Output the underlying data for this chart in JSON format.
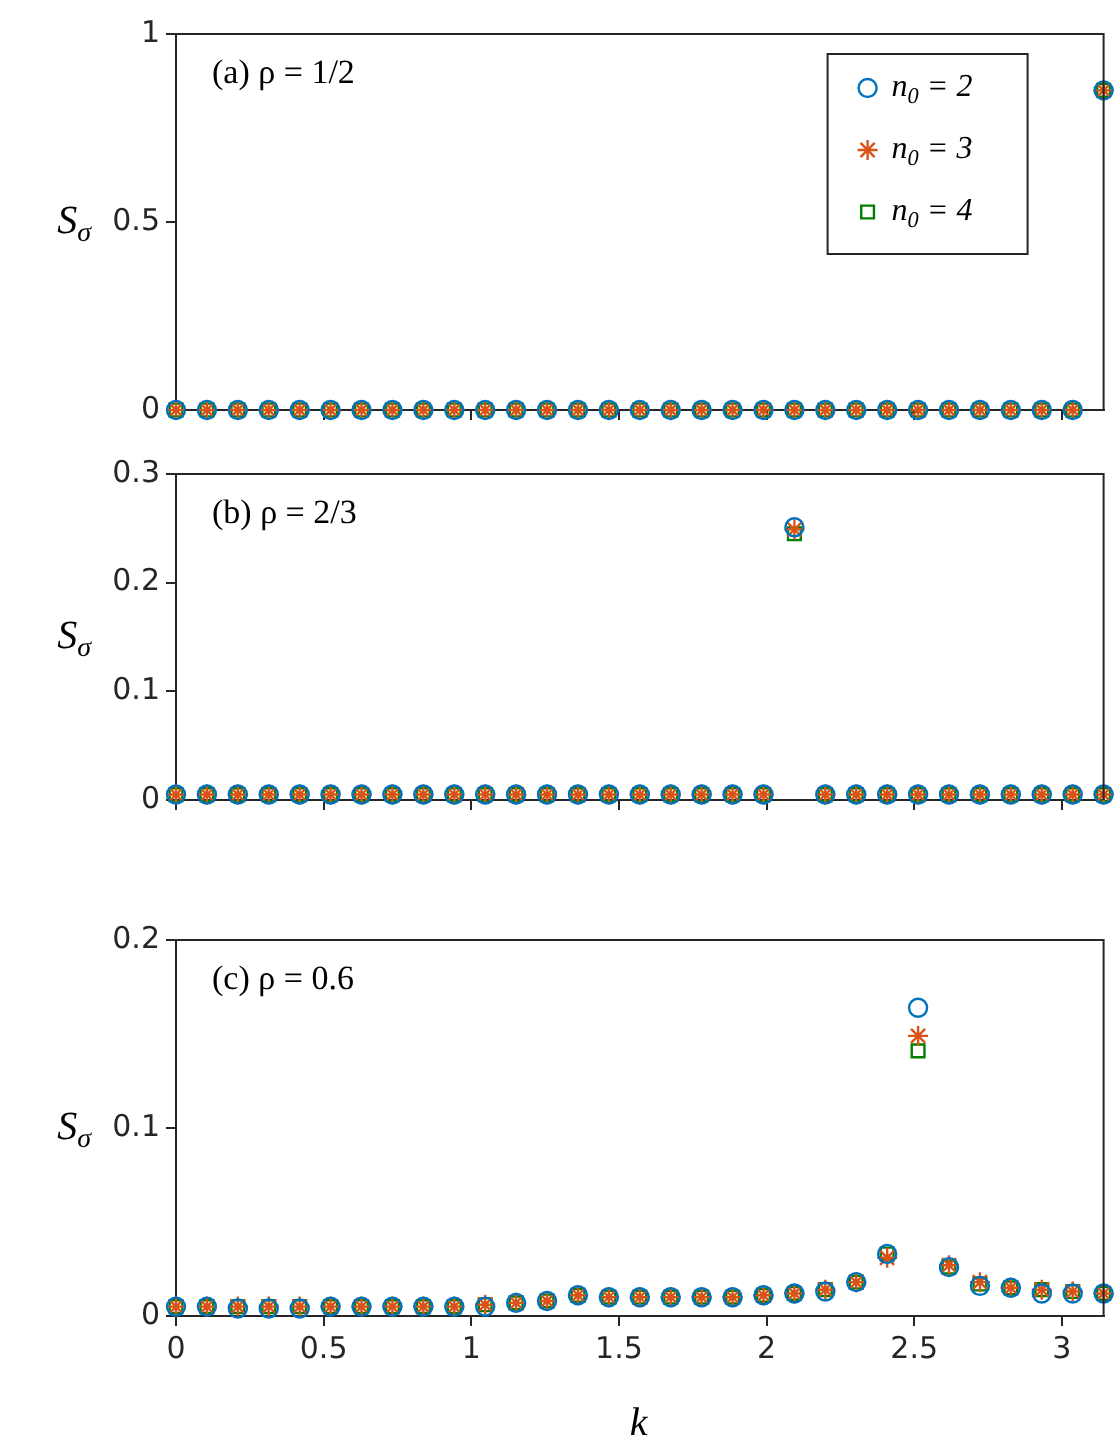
{
  "chart_data": [
    {
      "type": "scatter",
      "ylabel": "S$_{σ}$",
      "annotations": [
        "(a) ρ = 1/2"
      ],
      "x": [
        0,
        0.1047,
        0.2094,
        0.3142,
        0.4189,
        0.5236,
        0.6283,
        0.733,
        0.8378,
        0.9425,
        1.0472,
        1.1519,
        1.2566,
        1.3614,
        1.4661,
        1.5708,
        1.6755,
        1.7802,
        1.885,
        1.9897,
        2.0944,
        2.1991,
        2.3038,
        2.4086,
        2.5133,
        2.618,
        2.7227,
        2.8274,
        2.9322,
        3.0369,
        3.1416
      ],
      "series": [
        {
          "name": "n$_{0}$ = 2",
          "color": "#0072bd",
          "marker": "circle",
          "values": [
            0,
            0,
            0,
            0,
            0,
            0,
            0,
            0,
            0,
            0,
            0,
            0,
            0,
            0,
            0,
            0,
            0,
            0,
            0,
            0,
            0,
            0,
            0,
            0,
            0,
            0,
            0,
            0,
            0,
            0,
            0.85
          ]
        },
        {
          "name": "n$_{0}$ = 3",
          "color": "#d95319",
          "marker": "cross",
          "values": [
            0,
            0,
            0,
            0,
            0,
            0,
            0,
            0,
            0,
            0,
            0,
            0,
            0,
            0,
            0,
            0,
            0,
            0,
            0,
            0,
            0,
            0,
            0,
            0,
            0,
            0,
            0,
            0,
            0,
            0,
            0.85
          ]
        },
        {
          "name": "n$_{0}$ = 4",
          "color": "#008000",
          "marker": "square",
          "values": [
            0,
            0,
            0,
            0,
            0,
            0,
            0,
            0,
            0,
            0,
            0,
            0,
            0,
            0,
            0,
            0,
            0,
            0,
            0,
            0,
            0,
            0,
            0,
            0,
            0,
            0,
            0,
            0,
            0,
            0,
            0.85
          ]
        }
      ],
      "xlim": [
        0,
        3.1416
      ],
      "xticks": [
        0,
        0.5,
        1,
        1.5,
        2,
        2.5,
        3
      ],
      "ylim": [
        0,
        1
      ],
      "yticks": [
        0,
        0.5,
        1
      ],
      "tick_labels": "y",
      "grid": false,
      "legend": "top right"
    },
    {
      "type": "scatter",
      "ylabel": "S$_{σ}$",
      "annotations": [
        "(b) ρ = 2/3"
      ],
      "x": [
        0,
        0.1047,
        0.2094,
        0.3142,
        0.4189,
        0.5236,
        0.6283,
        0.733,
        0.8378,
        0.9425,
        1.0472,
        1.1519,
        1.2566,
        1.3614,
        1.4661,
        1.5708,
        1.6755,
        1.7802,
        1.885,
        1.9897,
        2.0944,
        2.1991,
        2.3038,
        2.4086,
        2.5133,
        2.618,
        2.7227,
        2.8274,
        2.9322,
        3.0369,
        3.1416
      ],
      "series": [
        {
          "color": "#0072bd",
          "marker": "circle",
          "values": [
            0.005,
            0.005,
            0.005,
            0.005,
            0.005,
            0.005,
            0.005,
            0.005,
            0.005,
            0.005,
            0.005,
            0.005,
            0.005,
            0.005,
            0.005,
            0.005,
            0.005,
            0.005,
            0.005,
            0.005,
            0.251,
            0.005,
            0.005,
            0.005,
            0.005,
            0.005,
            0.005,
            0.005,
            0.005,
            0.005,
            0.005
          ]
        },
        {
          "color": "#d95319",
          "marker": "cross",
          "values": [
            0.005,
            0.005,
            0.005,
            0.005,
            0.005,
            0.005,
            0.005,
            0.005,
            0.005,
            0.005,
            0.005,
            0.005,
            0.005,
            0.005,
            0.005,
            0.005,
            0.005,
            0.005,
            0.005,
            0.005,
            0.249,
            0.005,
            0.005,
            0.005,
            0.005,
            0.005,
            0.005,
            0.005,
            0.005,
            0.005,
            0.005
          ]
        },
        {
          "color": "#008000",
          "marker": "square",
          "values": [
            0.005,
            0.005,
            0.005,
            0.005,
            0.005,
            0.005,
            0.005,
            0.005,
            0.005,
            0.005,
            0.005,
            0.005,
            0.005,
            0.005,
            0.005,
            0.005,
            0.005,
            0.005,
            0.005,
            0.005,
            0.245,
            0.005,
            0.005,
            0.005,
            0.005,
            0.005,
            0.005,
            0.005,
            0.005,
            0.005,
            0.005
          ]
        }
      ],
      "xlim": [
        0,
        3.1416
      ],
      "xticks": [
        0,
        0.5,
        1,
        1.5,
        2,
        2.5,
        3
      ],
      "ylim": [
        0,
        0.3
      ],
      "yticks": [
        0,
        0.1,
        0.2,
        0.3
      ],
      "tick_labels": "y",
      "grid": false
    },
    {
      "type": "scatter",
      "xlabel": "k",
      "ylabel": "S$_{σ}$",
      "annotations": [
        "(c) ρ = 0.6"
      ],
      "x": [
        0,
        0.1047,
        0.2094,
        0.3142,
        0.4189,
        0.5236,
        0.6283,
        0.733,
        0.8378,
        0.9425,
        1.0472,
        1.1519,
        1.2566,
        1.3614,
        1.4661,
        1.5708,
        1.6755,
        1.7802,
        1.885,
        1.9897,
        2.0944,
        2.1991,
        2.3038,
        2.4086,
        2.5133,
        2.618,
        2.7227,
        2.8274,
        2.9322,
        3.0369,
        3.1416
      ],
      "series": [
        {
          "color": "#0072bd",
          "marker": "circle",
          "values": [
            0.005,
            0.005,
            0.004,
            0.004,
            0.004,
            0.005,
            0.005,
            0.005,
            0.005,
            0.005,
            0.005,
            0.007,
            0.008,
            0.011,
            0.01,
            0.01,
            0.01,
            0.01,
            0.01,
            0.011,
            0.012,
            0.013,
            0.018,
            0.033,
            0.164,
            0.026,
            0.016,
            0.015,
            0.012,
            0.012,
            0.012
          ]
        },
        {
          "color": "#d95319",
          "marker": "cross",
          "values": [
            0.005,
            0.005,
            0.005,
            0.005,
            0.005,
            0.005,
            0.005,
            0.005,
            0.005,
            0.005,
            0.006,
            0.007,
            0.008,
            0.011,
            0.01,
            0.01,
            0.01,
            0.01,
            0.01,
            0.011,
            0.012,
            0.014,
            0.018,
            0.031,
            0.149,
            0.027,
            0.018,
            0.015,
            0.014,
            0.013,
            0.012
          ]
        },
        {
          "color": "#008000",
          "marker": "square",
          "values": [
            0.005,
            0.005,
            0.005,
            0.005,
            0.005,
            0.005,
            0.005,
            0.005,
            0.005,
            0.005,
            0.006,
            0.007,
            0.008,
            0.011,
            0.01,
            0.01,
            0.01,
            0.01,
            0.01,
            0.011,
            0.012,
            0.014,
            0.018,
            0.033,
            0.141,
            0.026,
            0.017,
            0.015,
            0.014,
            0.013,
            0.012
          ]
        }
      ],
      "xlim": [
        0,
        3.1416
      ],
      "xticks": [
        0,
        0.5,
        1,
        1.5,
        2,
        2.5,
        3
      ],
      "ylim": [
        0,
        0.2
      ],
      "yticks": [
        0,
        0.1,
        0.2
      ],
      "grid": false
    }
  ]
}
